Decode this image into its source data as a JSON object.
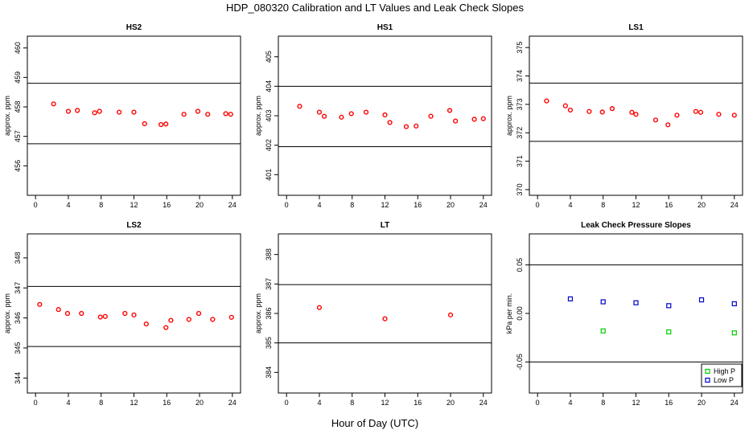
{
  "figure": {
    "title": "HDP_080320  Calibration and LT Values and Leak Check Slopes",
    "xlabel": "Hour of Day (UTC)"
  },
  "chart_data": [
    {
      "type": "scatter",
      "title": "HS2",
      "ylabel": "approx. ppm",
      "xlim": [
        -1,
        25
      ],
      "ylim": [
        455,
        460.4
      ],
      "xticks": [
        0,
        4,
        8,
        12,
        16,
        20,
        24
      ],
      "yticks": [
        456,
        457,
        458,
        459,
        460
      ],
      "hlines": [
        456.75,
        458.8
      ],
      "series": [
        {
          "name": "values",
          "color": "#ff0000",
          "x": [
            2.2,
            4.0,
            5.1,
            7.2,
            7.8,
            10.2,
            12.0,
            13.3,
            15.3,
            15.9,
            18.1,
            19.8,
            21.0,
            23.2,
            23.8
          ],
          "y": [
            458.1,
            457.85,
            457.88,
            457.8,
            457.85,
            457.82,
            457.82,
            457.43,
            457.4,
            457.42,
            457.75,
            457.85,
            457.75,
            457.77,
            457.75
          ]
        }
      ]
    },
    {
      "type": "scatter",
      "title": "HS1",
      "ylabel": "approx. ppm",
      "xlim": [
        -1,
        25
      ],
      "ylim": [
        400.3,
        405.7
      ],
      "xticks": [
        0,
        4,
        8,
        12,
        16,
        20,
        24
      ],
      "yticks": [
        401,
        402,
        403,
        404,
        405
      ],
      "hlines": [
        401.95,
        404.0
      ],
      "series": [
        {
          "name": "values",
          "color": "#ff0000",
          "x": [
            1.6,
            4.0,
            4.6,
            6.7,
            7.9,
            9.7,
            12.0,
            12.6,
            14.6,
            15.8,
            17.6,
            19.9,
            20.6,
            22.9,
            24.0
          ],
          "y": [
            403.32,
            403.12,
            402.98,
            402.95,
            403.07,
            403.12,
            403.03,
            402.77,
            402.63,
            402.65,
            402.98,
            403.18,
            402.82,
            402.88,
            402.9
          ]
        }
      ]
    },
    {
      "type": "scatter",
      "title": "LS1",
      "ylabel": "approx. ppm",
      "xlim": [
        -1,
        25
      ],
      "ylim": [
        369.8,
        375.4
      ],
      "xticks": [
        0,
        4,
        8,
        12,
        16,
        20,
        24
      ],
      "yticks": [
        370,
        371,
        372,
        373,
        374,
        375
      ],
      "hlines": [
        371.7,
        373.75
      ],
      "series": [
        {
          "name": "values",
          "color": "#ff0000",
          "x": [
            1.1,
            3.4,
            4.0,
            6.3,
            7.9,
            9.1,
            11.5,
            12.0,
            14.4,
            15.9,
            17.0,
            19.3,
            19.9,
            22.1,
            24.0
          ],
          "y": [
            373.12,
            372.95,
            372.8,
            372.75,
            372.73,
            372.85,
            372.72,
            372.65,
            372.45,
            372.28,
            372.62,
            372.75,
            372.72,
            372.65,
            372.62
          ]
        }
      ]
    },
    {
      "type": "scatter",
      "title": "LS2",
      "ylabel": "approx. ppm",
      "xlim": [
        -1,
        25
      ],
      "ylim": [
        343.5,
        348.8
      ],
      "xticks": [
        0,
        4,
        8,
        12,
        16,
        20,
        24
      ],
      "yticks": [
        344,
        345,
        346,
        347,
        348
      ],
      "hlines": [
        345.05,
        347.05
      ],
      "series": [
        {
          "name": "values",
          "color": "#ff0000",
          "x": [
            0.5,
            2.8,
            3.9,
            5.6,
            7.9,
            8.5,
            10.9,
            12.0,
            13.5,
            15.9,
            16.5,
            18.7,
            19.9,
            21.6,
            23.9
          ],
          "y": [
            346.45,
            346.28,
            346.15,
            346.15,
            346.03,
            346.05,
            346.15,
            346.1,
            345.8,
            345.68,
            345.92,
            345.95,
            346.15,
            345.95,
            346.02
          ]
        }
      ]
    },
    {
      "type": "scatter",
      "title": "LT",
      "ylabel": "approx. ppm",
      "xlim": [
        -1,
        25
      ],
      "ylim": [
        383.3,
        388.7
      ],
      "xticks": [
        0,
        4,
        8,
        12,
        16,
        20,
        24
      ],
      "yticks": [
        384,
        385,
        386,
        387,
        388
      ],
      "hlines": [
        385.0,
        386.98
      ],
      "series": [
        {
          "name": "values",
          "color": "#ff0000",
          "x": [
            4.0,
            12.0,
            20.0
          ],
          "y": [
            386.2,
            385.82,
            385.95
          ]
        }
      ]
    },
    {
      "type": "scatter",
      "title": "Leak Check Pressure Slopes",
      "ylabel": "kPa per min.",
      "xlim": [
        -1,
        25
      ],
      "ylim": [
        -0.082,
        0.082
      ],
      "xticks": [
        0,
        4,
        8,
        12,
        16,
        20,
        24
      ],
      "yticks": [
        -0.05,
        0.0,
        0.05
      ],
      "ytick_labels": [
        "-0.05",
        "0.00",
        "0.05"
      ],
      "hlines": [
        -0.05,
        0.05
      ],
      "legend": {
        "position": "bottom-right",
        "entries": [
          "High P",
          "Low P"
        ]
      },
      "series": [
        {
          "name": "High P",
          "color": "#00cc00",
          "x": [
            8,
            16,
            24
          ],
          "y": [
            -0.018,
            -0.019,
            -0.02
          ]
        },
        {
          "name": "Low P",
          "color": "#0000cc",
          "x": [
            4,
            8,
            12,
            16,
            20,
            24
          ],
          "y": [
            0.015,
            0.012,
            0.011,
            0.008,
            0.014,
            0.01
          ]
        }
      ]
    }
  ]
}
